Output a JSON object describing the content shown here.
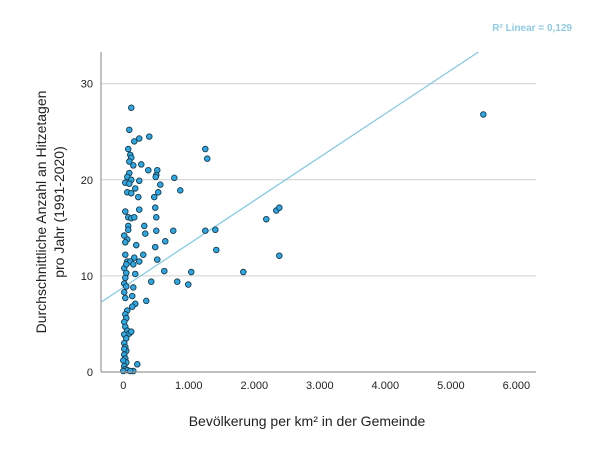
{
  "chart_data": {
    "type": "scatter",
    "xlabel": "Bevölkerung per km² in der Gemeinde",
    "ylabel": [
      "Durchschnittliche Anzahl an Hitzetagen",
      "pro Jahr (1991-2020)"
    ],
    "annotation": "R² Linear = 0,129",
    "xlim": [
      -340,
      6300
    ],
    "ylim": [
      0,
      33.3
    ],
    "xticks": [
      0,
      1000,
      2000,
      3000,
      4000,
      5000,
      6000
    ],
    "xtick_labels": [
      "0",
      "1.000",
      "2.000",
      "3.000",
      "4.000",
      "5.000",
      "6.000"
    ],
    "yticks": [
      0,
      10,
      20,
      30
    ],
    "ytick_labels": [
      "0",
      "10",
      "20",
      "30"
    ],
    "grid": "horizontal",
    "fit_line": {
      "intercept": 8.8,
      "slope": 0.00452
    },
    "colors": {
      "point_fill": "#2aa9e6",
      "point_stroke": "#1a3a4a",
      "fit_line": "#7ec8e3",
      "grid": "#d0d0d0"
    },
    "points": [
      [
        5496,
        26.8
      ],
      [
        1252,
        23.2
      ],
      [
        1282,
        22.2
      ],
      [
        1252,
        14.7
      ],
      [
        1405,
        14.8
      ],
      [
        1420,
        12.7
      ],
      [
        1832,
        10.4
      ],
      [
        2183,
        15.9
      ],
      [
        2336,
        16.8
      ],
      [
        2382,
        17.1
      ],
      [
        2382,
        12.1
      ],
      [
        779,
        20.2
      ],
      [
        870,
        18.9
      ],
      [
        1038,
        10.4
      ],
      [
        992,
        9.1
      ],
      [
        824,
        9.4
      ],
      [
        626,
        10.5
      ],
      [
        519,
        21
      ],
      [
        122,
        27.5
      ],
      [
        92,
        25.2
      ],
      [
        168,
        24
      ],
      [
        244,
        24.3
      ],
      [
        397,
        24.5
      ],
      [
        76,
        23.2
      ],
      [
        107,
        22.6
      ],
      [
        122,
        22.3
      ],
      [
        92,
        21.9
      ],
      [
        153,
        21.5
      ],
      [
        275,
        21.6
      ],
      [
        382,
        21
      ],
      [
        504,
        20.5
      ],
      [
        495,
        20.3
      ],
      [
        92,
        20.7
      ],
      [
        61,
        20.3
      ],
      [
        122,
        20
      ],
      [
        31,
        19.7
      ],
      [
        92,
        19.6
      ],
      [
        244,
        19.9
      ],
      [
        183,
        19.1
      ],
      [
        565,
        19.5
      ],
      [
        534,
        18.7
      ],
      [
        61,
        18.7
      ],
      [
        122,
        18.6
      ],
      [
        229,
        18.2
      ],
      [
        473,
        18.2
      ],
      [
        31,
        16.7
      ],
      [
        244,
        16.9
      ],
      [
        488,
        17.1
      ],
      [
        504,
        16.1
      ],
      [
        76,
        16.1
      ],
      [
        122,
        16
      ],
      [
        168,
        16.1
      ],
      [
        76,
        15.2
      ],
      [
        321,
        15.2
      ],
      [
        76,
        14.8
      ],
      [
        336,
        14.4
      ],
      [
        504,
        14.7
      ],
      [
        763,
        14.7
      ],
      [
        61,
        13.8
      ],
      [
        198,
        13.2
      ],
      [
        488,
        13
      ],
      [
        641,
        13.6
      ],
      [
        31,
        13.5
      ],
      [
        31,
        12.2
      ],
      [
        305,
        12.2
      ],
      [
        168,
        11.9
      ],
      [
        244,
        11.5
      ],
      [
        519,
        11.7
      ],
      [
        61,
        11.5
      ],
      [
        107,
        11.5
      ],
      [
        153,
        11.2
      ],
      [
        183,
        10.2
      ],
      [
        427,
        9.4
      ],
      [
        351,
        7.4
      ],
      [
        153,
        8.8
      ],
      [
        137,
        7.9
      ],
      [
        183,
        7.1
      ],
      [
        137,
        6.8
      ],
      [
        61,
        6.4
      ],
      [
        31,
        6.0
      ],
      [
        15,
        10.8
      ],
      [
        46,
        10.3
      ],
      [
        31,
        9.8
      ],
      [
        15,
        9.2
      ],
      [
        46,
        8.9
      ],
      [
        15,
        8.3
      ],
      [
        31,
        7.7
      ],
      [
        46,
        5.6
      ],
      [
        15,
        5.2
      ],
      [
        31,
        4.7
      ],
      [
        61,
        4.3
      ],
      [
        92,
        4.0
      ],
      [
        122,
        4.2
      ],
      [
        15,
        3.9
      ],
      [
        46,
        3.5
      ],
      [
        15,
        3.0
      ],
      [
        31,
        2.6
      ],
      [
        46,
        2.2
      ],
      [
        15,
        1.8
      ],
      [
        31,
        1.4
      ],
      [
        46,
        1.0
      ],
      [
        15,
        0.6
      ],
      [
        31,
        0.3
      ],
      [
        61,
        0.2
      ],
      [
        214,
        0.8
      ],
      [
        153,
        0.1
      ],
      [
        107,
        0.1
      ],
      [
        0,
        0.1
      ],
      [
        15,
        2.4
      ],
      [
        0,
        1.2
      ],
      [
        46,
        11.2
      ],
      [
        15,
        14.2
      ]
    ]
  }
}
